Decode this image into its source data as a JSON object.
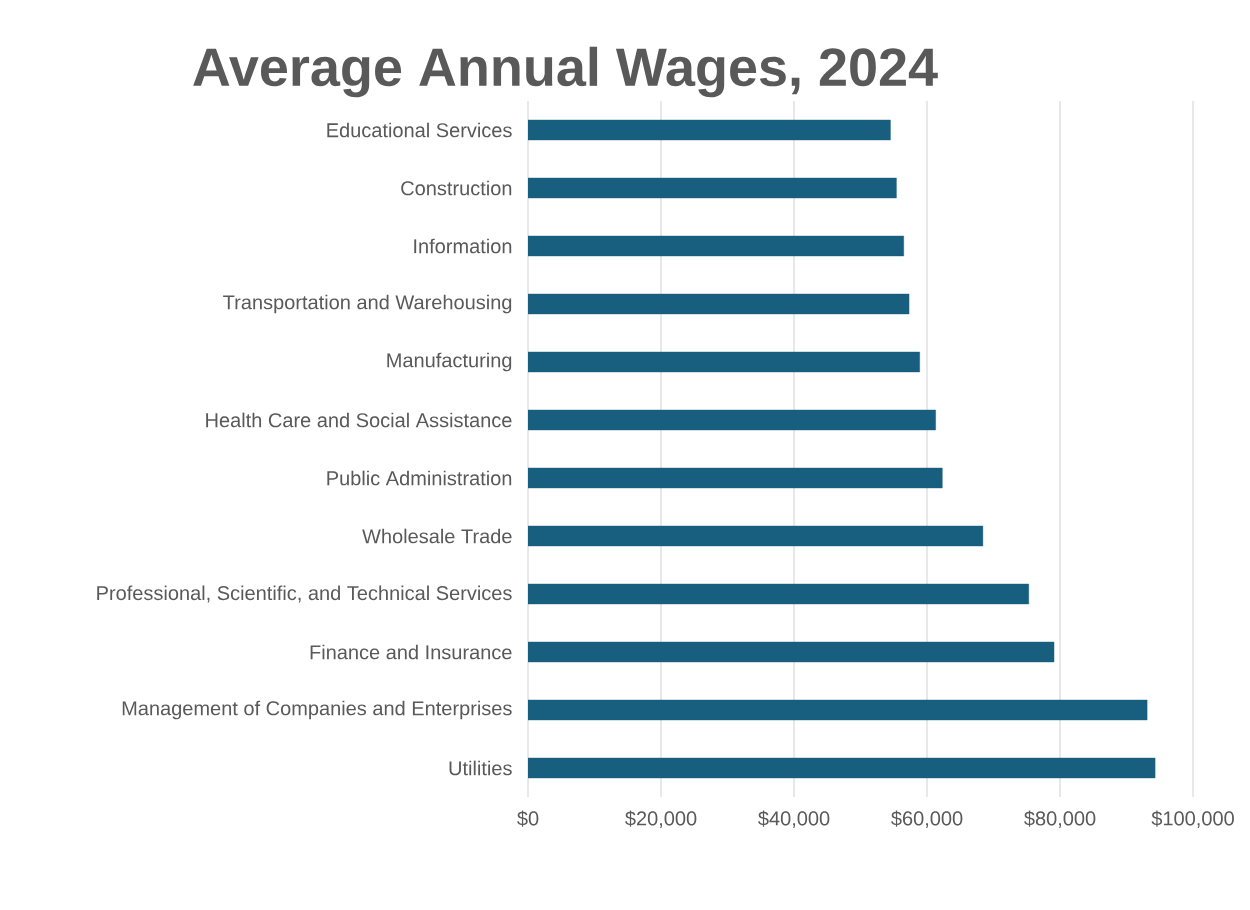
{
  "chart_data": {
    "type": "bar",
    "orientation": "horizontal",
    "title": "Average Annual Wages, 2024",
    "categories": [
      "Educational Services",
      "Construction",
      "Information",
      "Transportation and Warehousing",
      "Manufacturing",
      "Health Care and Social Assistance",
      "Public Administration",
      "Wholesale Trade",
      "Professional, Scientific, and Technical Services",
      "Finance and Insurance",
      "Management of Companies and Enterprises",
      "Utilities"
    ],
    "values": [
      54500,
      55400,
      56500,
      57300,
      58900,
      61300,
      62300,
      68400,
      75300,
      79100,
      93100,
      94300
    ],
    "color": "#175e7f",
    "xlim": [
      0,
      100000
    ],
    "xticks": [
      {
        "value": 0,
        "label": "$0"
      },
      {
        "value": 20000,
        "label": "$20,000"
      },
      {
        "value": 40000,
        "label": "$40,000"
      },
      {
        "value": 60000,
        "label": "$60,000"
      },
      {
        "value": 80000,
        "label": "$80,000"
      },
      {
        "value": 100000,
        "label": "$100,000"
      }
    ],
    "grid": "x"
  }
}
